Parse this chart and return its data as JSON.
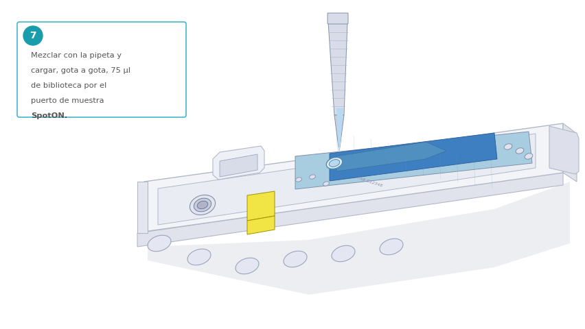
{
  "background_color": "#ffffff",
  "step_number": "7",
  "step_circle_color": "#1a9daa",
  "step_text_color": "#ffffff",
  "box_border_color": "#44b8c8",
  "text_color": "#555555",
  "text_line1": "Mezclar con la pipeta y",
  "text_line2": "cargar, gota a gota, 75 μl",
  "text_line3": "de biblioteca por el",
  "text_line4": "puerto de muestra",
  "text_bold": "SpotON.",
  "outline_color": "#b0b8c8",
  "body_color": "#f2f4f8",
  "shadow_color": "#dde0ea",
  "side_color": "#e0e3ec",
  "blue_light": "#a8cce0",
  "blue_mid": "#6baed6",
  "blue_dark": "#3d7fc1",
  "yellow_color": "#f0e545",
  "pip_body": "#d8dce8",
  "pip_tip": "#c8d0e0",
  "pip_liquid": "#b8d8f0",
  "dark_outline": "#8090a8"
}
